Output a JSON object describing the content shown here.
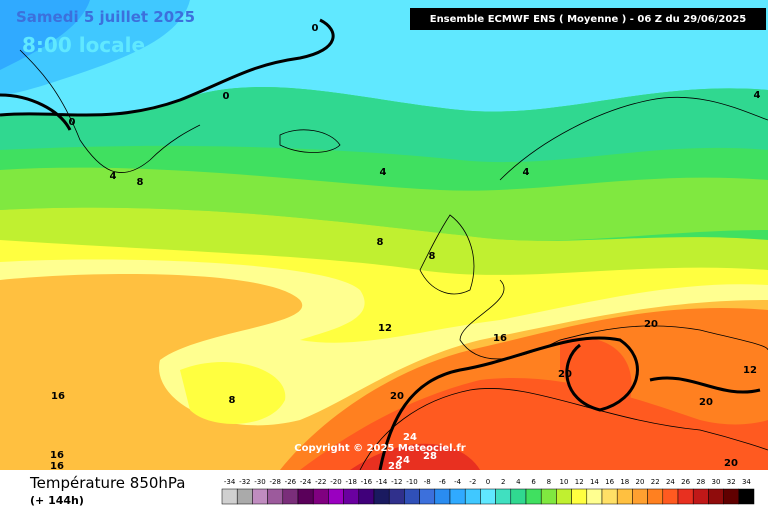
{
  "header": {
    "date": "Samedi 5 juillet 2025",
    "time": "8:00 locale",
    "model": "Ensemble ECMWF ENS  ( Moyenne )  - 06 Z du 29/06/2025"
  },
  "map": {
    "contour_labels": [
      "0",
      "0",
      "0",
      "4",
      "8",
      "4",
      "4",
      "4",
      "8",
      "8",
      "12",
      "16",
      "20",
      "20",
      "12",
      "20",
      "20",
      "16",
      "8",
      "24",
      "24",
      "28",
      "28",
      "16",
      "16",
      "20"
    ],
    "copyright": "Copyright © 2025 Meteociel.fr"
  },
  "legend": {
    "title": "Température 850hPa",
    "lead_time": "(+ 144h)",
    "ticks": [
      -34,
      -32,
      -30,
      -28,
      -26,
      -24,
      -22,
      -20,
      -18,
      -16,
      -14,
      -12,
      -10,
      -8,
      -6,
      -4,
      -2,
      0,
      2,
      4,
      6,
      8,
      10,
      12,
      14,
      16,
      18,
      20,
      22,
      24,
      26,
      28,
      30,
      32,
      34
    ],
    "colors": [
      "#d0d0d0",
      "#aaaaaa",
      "#c08cc0",
      "#9c5a9c",
      "#7a2e7a",
      "#5a005a",
      "#800080",
      "#9a00c0",
      "#6a00a0",
      "#40007a",
      "#1a1a60",
      "#30308c",
      "#3050b8",
      "#3c70dc",
      "#2a8cf0",
      "#30aaff",
      "#40c8ff",
      "#60e8ff",
      "#40e0c0",
      "#30d890",
      "#40e060",
      "#80e840",
      "#c0f030",
      "#ffff40",
      "#ffff90",
      "#ffe066",
      "#ffc040",
      "#ffa030",
      "#ff8020",
      "#ff5a20",
      "#e83020",
      "#c01818",
      "#900c0c",
      "#600000",
      "#000000"
    ]
  }
}
